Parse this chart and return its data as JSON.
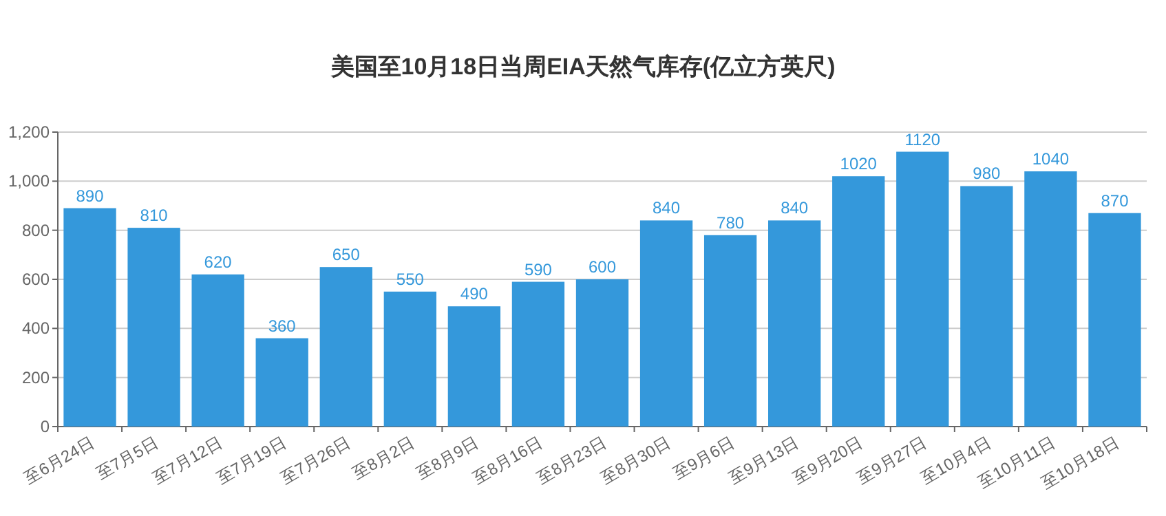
{
  "chart_data": {
    "type": "bar",
    "title": "美国至10月18日当周EIA天然气库存(亿立方英尺)",
    "categories": [
      "至6月24日",
      "至7月5日",
      "至7月12日",
      "至7月19日",
      "至7月26日",
      "至8月2日",
      "至8月9日",
      "至8月16日",
      "至8月23日",
      "至8月30日",
      "至9月6日",
      "至9月13日",
      "至9月20日",
      "至9月27日",
      "至10月4日",
      "至10月11日",
      "至10月18日"
    ],
    "values": [
      890,
      810,
      620,
      360,
      650,
      550,
      490,
      590,
      600,
      840,
      780,
      840,
      1020,
      1120,
      980,
      1040,
      870
    ],
    "color": "#3498db",
    "ylim": [
      0,
      1200
    ],
    "yticks": [
      0,
      200,
      400,
      600,
      800,
      {
        "value": 1000,
        "label": "1,000"
      },
      {
        "value": 1200,
        "label": "1,200"
      }
    ],
    "grid": "y",
    "data_labels": true
  }
}
